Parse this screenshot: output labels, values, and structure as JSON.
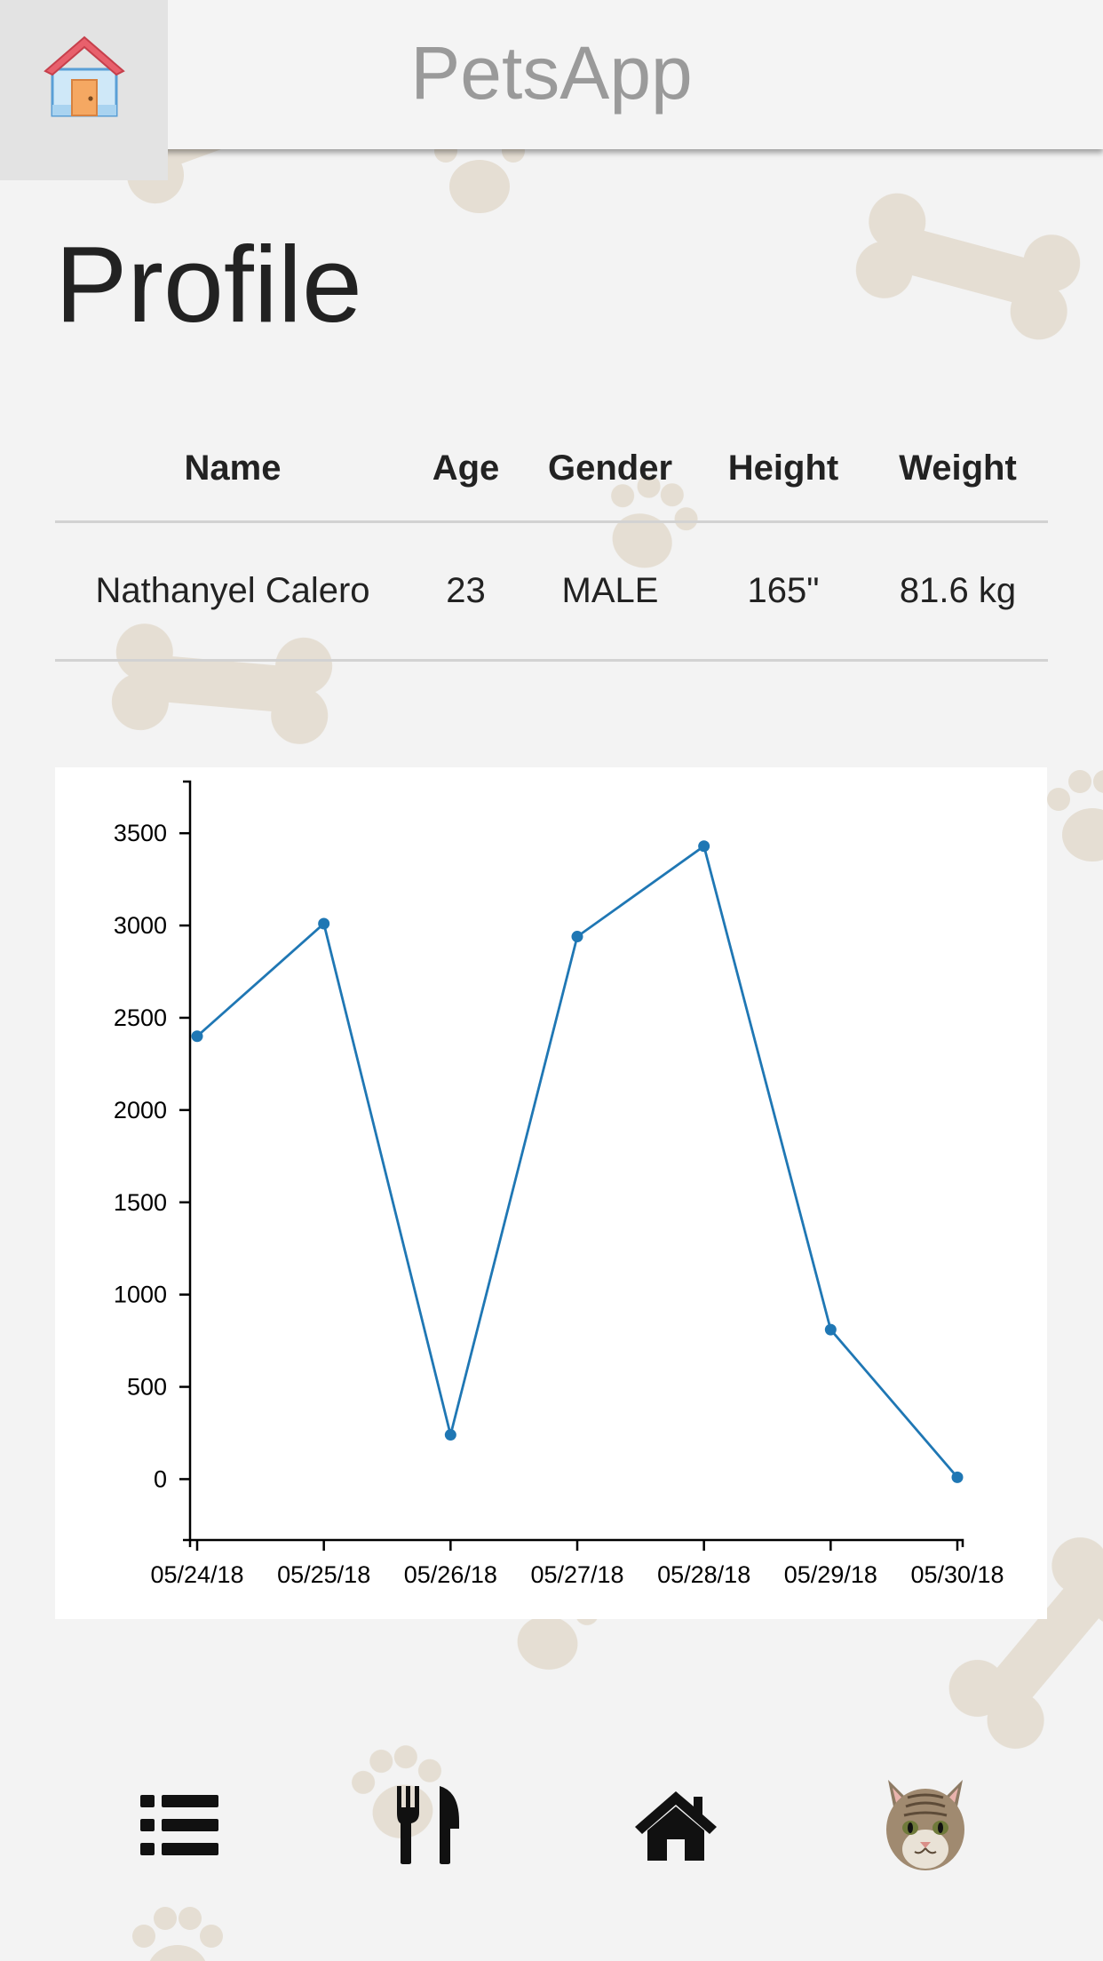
{
  "header": {
    "app_title": "PetsApp",
    "home_icon": "house-icon"
  },
  "page": {
    "title": "Profile"
  },
  "profile_table": {
    "headers": [
      "Name",
      "Age",
      "Gender",
      "Height",
      "Weight"
    ],
    "rows": [
      [
        "Nathanyel Calero",
        "23",
        "MALE",
        "165\"",
        "81.6 kg"
      ]
    ]
  },
  "chart_data": {
    "type": "line",
    "x": [
      "05/24/18",
      "05/25/18",
      "05/26/18",
      "05/27/18",
      "05/28/18",
      "05/29/18",
      "05/30/18"
    ],
    "values": [
      2400,
      3010,
      240,
      2940,
      3430,
      810,
      10
    ],
    "yticks": [
      0,
      500,
      1000,
      1500,
      2000,
      2500,
      3000,
      3500
    ],
    "ylim": [
      -330,
      3780
    ],
    "title": "",
    "xlabel": "",
    "ylabel": "",
    "line_color": "#1f77b4",
    "grid": false
  },
  "bottom_nav": [
    {
      "icon": "list-icon"
    },
    {
      "icon": "fork-knife-icon"
    },
    {
      "icon": "home-icon"
    },
    {
      "icon": "cat-face-icon"
    }
  ],
  "colors": {
    "background": "#f3f3f3",
    "header": "#f4f4f4",
    "accent": "#1f77b4"
  }
}
